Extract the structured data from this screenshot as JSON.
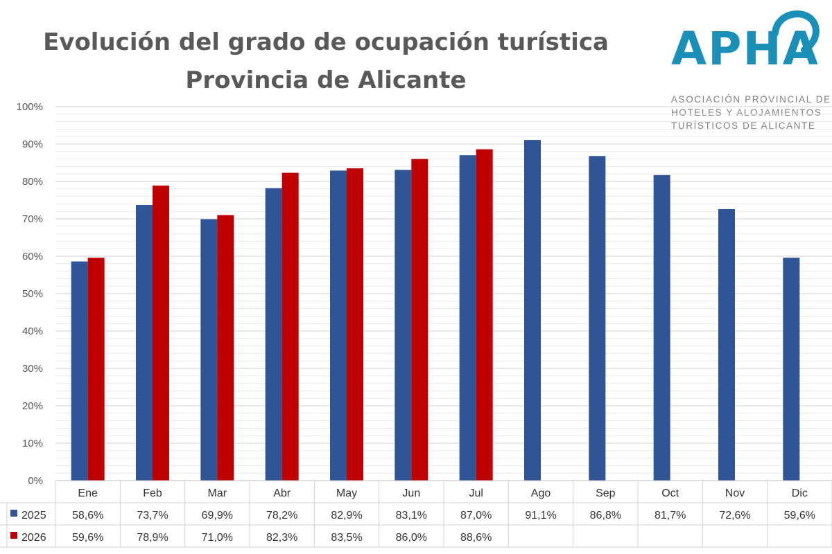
{
  "title_line1": "Evolución del grado de ocupación turística",
  "title_line2": "Provincia de Alicante",
  "logo": {
    "word": "APHA",
    "subtitle_lines": [
      "ASOCIACIÓN PROVINCIAL DE",
      "HOTELES Y ALOJAMIENTOS",
      "TURÍSTICOS DE ALICANTE"
    ]
  },
  "colors": {
    "series_2025": "#2f5597",
    "series_2026": "#c00000",
    "logo": "#1a8fb8"
  },
  "chart_data": {
    "type": "bar",
    "title": "Evolución del grado de ocupación turística Provincia de Alicante",
    "categories": [
      "Ene",
      "Feb",
      "Mar",
      "Abr",
      "May",
      "Jun",
      "Jul",
      "Ago",
      "Sep",
      "Oct",
      "Nov",
      "Dic"
    ],
    "series": [
      {
        "name": "2025",
        "values": [
          58.6,
          73.7,
          69.9,
          78.2,
          82.9,
          83.1,
          87.0,
          91.1,
          86.8,
          81.7,
          72.6,
          59.6
        ],
        "labels": [
          "58,6%",
          "73,7%",
          "69,9%",
          "78,2%",
          "82,9%",
          "83,1%",
          "87,0%",
          "91,1%",
          "86,8%",
          "81,7%",
          "72,6%",
          "59,6%"
        ]
      },
      {
        "name": "2026",
        "values": [
          59.6,
          78.9,
          71.0,
          82.3,
          83.5,
          86.0,
          88.6,
          null,
          null,
          null,
          null,
          null
        ],
        "labels": [
          "59,6%",
          "78,9%",
          "71,0%",
          "82,3%",
          "83,5%",
          "86,0%",
          "88,6%",
          "",
          "",
          "",
          "",
          ""
        ]
      }
    ],
    "ylim": [
      0,
      100
    ],
    "yticks": [
      "0%",
      "10%",
      "20%",
      "30%",
      "40%",
      "50%",
      "60%",
      "70%",
      "80%",
      "90%",
      "100%"
    ],
    "xlabel": "",
    "ylabel": "",
    "grid": true,
    "legend": "data-table"
  }
}
